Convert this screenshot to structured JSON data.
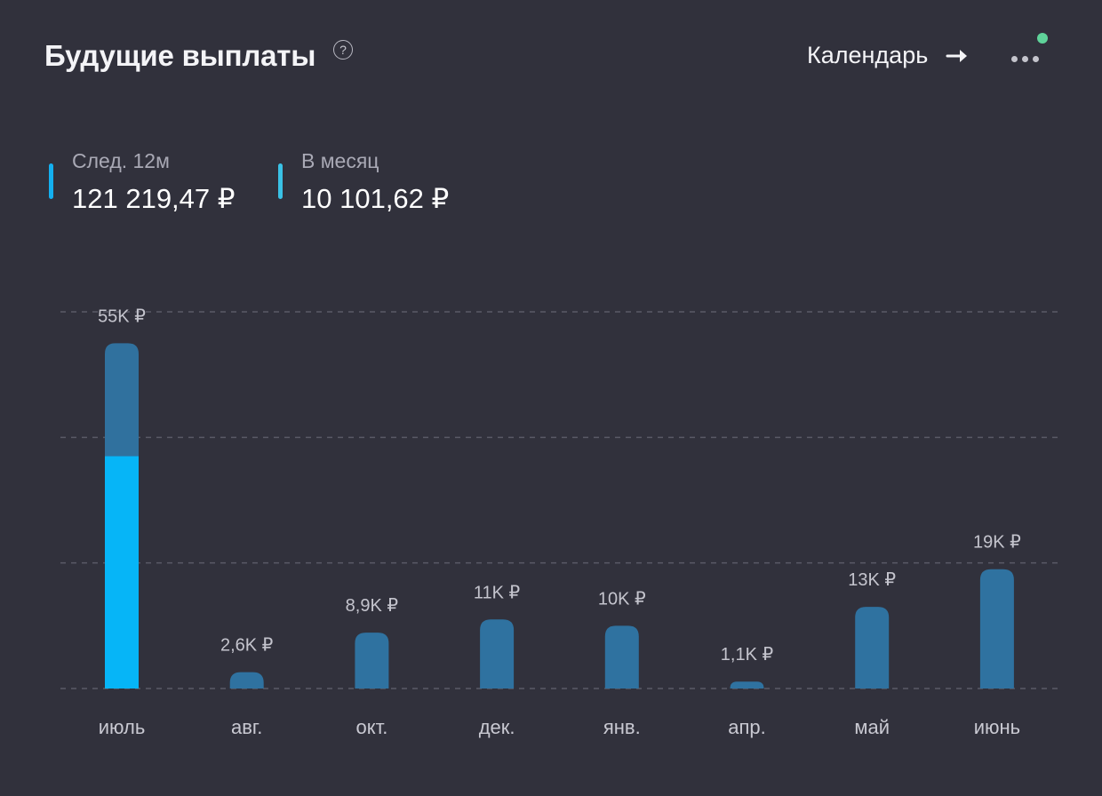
{
  "header": {
    "title": "Будущие выплаты",
    "help_icon": "question-circle-icon",
    "calendar_label": "Календарь",
    "calendar_icon": "arrow-right-icon",
    "more_icon": "more-dots-icon"
  },
  "stats": [
    {
      "label": "След. 12м",
      "value": "121 219,47 ₽",
      "color": "#14b0f0"
    },
    {
      "label": "В месяц",
      "value": "10 101,62 ₽",
      "color": "#3ac2e6"
    }
  ],
  "colors": {
    "bar": "#2f72a0",
    "bar_highlight": "#06b5f7",
    "bar_top": "#30719e",
    "notify": "#5fd39a"
  },
  "chart_data": {
    "type": "bar",
    "categories": [
      "июль",
      "авг.",
      "окт.",
      "дек.",
      "янв.",
      "апр.",
      "май",
      "июнь"
    ],
    "values": [
      55000,
      2600,
      8900,
      11000,
      10000,
      1100,
      13000,
      19000
    ],
    "data_labels": [
      "55K ₽",
      "2,6K ₽",
      "8,9K ₽",
      "11K ₽",
      "10K ₽",
      "1,1K ₽",
      "13K ₽",
      "19K ₽"
    ],
    "highlight": {
      "index": 0,
      "value": 37000
    },
    "ylim": [
      0,
      60000
    ],
    "grid": true,
    "title": "",
    "xlabel": "",
    "ylabel": ""
  }
}
